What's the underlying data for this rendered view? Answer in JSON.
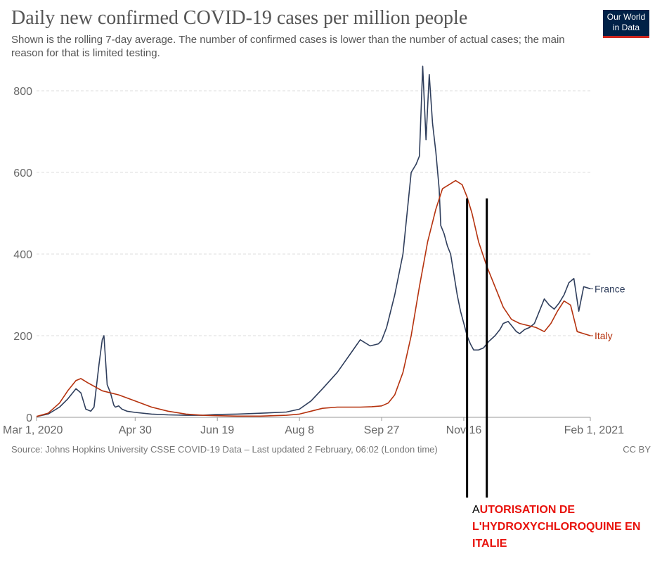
{
  "header": {
    "title": "Daily new confirmed COVID-19 cases per million people",
    "subtitle": "Shown is the rolling 7-day average. The number of confirmed cases is lower than the number of actual cases; the main reason for that is limited testing.",
    "logo_line1": "Our World",
    "logo_line2": "in Data"
  },
  "footer": {
    "source": "Source: Johns Hopkins University CSSE COVID-19 Data – Last updated 2 February, 06:02 (London time)",
    "license": "CC BY"
  },
  "annotation": {
    "first_letter": "A",
    "rest": "UTORISATION DE L'HYDROXYCHLOROQUINE EN ITALIE",
    "color": "#e8120c"
  },
  "colors": {
    "france": "#2f3e5c",
    "italy": "#b5320e",
    "grid": "#dddddd",
    "logo_bg": "#002147",
    "logo_bar": "#ce261e"
  },
  "chart_data": {
    "type": "line",
    "title": "Daily new confirmed COVID-19 cases per million people",
    "x_axis_type": "date",
    "xlim": [
      "2020-03-01",
      "2021-02-01"
    ],
    "ylim": [
      0,
      850
    ],
    "y_ticks": [
      0,
      200,
      400,
      600,
      800
    ],
    "x_ticks": [
      {
        "date": "2020-03-01",
        "label": "Mar 1, 2020"
      },
      {
        "date": "2020-04-30",
        "label": "Apr 30"
      },
      {
        "date": "2020-06-19",
        "label": "Jun 19"
      },
      {
        "date": "2020-08-08",
        "label": "Aug 8"
      },
      {
        "date": "2020-09-27",
        "label": "Sep 27"
      },
      {
        "date": "2020-11-16",
        "label": "Nov 16"
      },
      {
        "date": "2021-02-01",
        "label": "Feb 1, 2021"
      }
    ],
    "grid": true,
    "legend": "inline-right",
    "series": [
      {
        "name": "France",
        "x": [
          "2020-03-01",
          "2020-03-08",
          "2020-03-15",
          "2020-03-20",
          "2020-03-25",
          "2020-03-28",
          "2020-03-31",
          "2020-04-03",
          "2020-04-05",
          "2020-04-08",
          "2020-04-10",
          "2020-04-11",
          "2020-04-13",
          "2020-04-15",
          "2020-04-17",
          "2020-04-18",
          "2020-04-20",
          "2020-04-22",
          "2020-04-25",
          "2020-04-30",
          "2020-05-10",
          "2020-05-20",
          "2020-05-31",
          "2020-06-10",
          "2020-06-19",
          "2020-07-01",
          "2020-07-15",
          "2020-07-31",
          "2020-08-08",
          "2020-08-15",
          "2020-08-22",
          "2020-08-31",
          "2020-09-07",
          "2020-09-14",
          "2020-09-20",
          "2020-09-25",
          "2020-09-27",
          "2020-09-30",
          "2020-10-05",
          "2020-10-10",
          "2020-10-15",
          "2020-10-18",
          "2020-10-20",
          "2020-10-22",
          "2020-10-24",
          "2020-10-26",
          "2020-10-28",
          "2020-10-30",
          "2020-11-01",
          "2020-11-02",
          "2020-11-04",
          "2020-11-06",
          "2020-11-08",
          "2020-11-10",
          "2020-11-12",
          "2020-11-14",
          "2020-11-16",
          "2020-11-18",
          "2020-11-20",
          "2020-11-22",
          "2020-11-25",
          "2020-11-28",
          "2020-12-01",
          "2020-12-05",
          "2020-12-08",
          "2020-12-10",
          "2020-12-13",
          "2020-12-15",
          "2020-12-18",
          "2020-12-20",
          "2020-12-23",
          "2020-12-26",
          "2020-12-29",
          "2021-01-01",
          "2021-01-04",
          "2021-01-07",
          "2021-01-10",
          "2021-01-13",
          "2021-01-16",
          "2021-01-19",
          "2021-01-22",
          "2021-01-25",
          "2021-01-28",
          "2021-02-01"
        ],
        "y": [
          2,
          8,
          25,
          45,
          70,
          60,
          20,
          15,
          25,
          130,
          190,
          200,
          80,
          60,
          30,
          25,
          28,
          20,
          15,
          12,
          8,
          6,
          5,
          5,
          7,
          8,
          10,
          13,
          20,
          40,
          70,
          110,
          150,
          190,
          175,
          180,
          188,
          220,
          300,
          400,
          600,
          620,
          640,
          860,
          680,
          840,
          720,
          650,
          560,
          470,
          450,
          420,
          400,
          350,
          300,
          260,
          230,
          200,
          180,
          165,
          165,
          170,
          185,
          200,
          215,
          230,
          235,
          225,
          210,
          205,
          215,
          220,
          230,
          260,
          290,
          275,
          265,
          280,
          300,
          330,
          340,
          260,
          320,
          315
        ],
        "color": "#2f3e5c"
      },
      {
        "name": "Italy",
        "x": [
          "2020-03-01",
          "2020-03-08",
          "2020-03-15",
          "2020-03-20",
          "2020-03-25",
          "2020-03-28",
          "2020-04-01",
          "2020-04-10",
          "2020-04-20",
          "2020-04-30",
          "2020-05-10",
          "2020-05-20",
          "2020-05-31",
          "2020-06-10",
          "2020-06-19",
          "2020-07-01",
          "2020-07-15",
          "2020-07-31",
          "2020-08-08",
          "2020-08-15",
          "2020-08-22",
          "2020-08-31",
          "2020-09-07",
          "2020-09-14",
          "2020-09-21",
          "2020-09-27",
          "2020-10-01",
          "2020-10-05",
          "2020-10-10",
          "2020-10-15",
          "2020-10-20",
          "2020-10-25",
          "2020-10-30",
          "2020-11-03",
          "2020-11-07",
          "2020-11-11",
          "2020-11-13",
          "2020-11-15",
          "2020-11-18",
          "2020-11-21",
          "2020-11-25",
          "2020-11-30",
          "2020-12-05",
          "2020-12-10",
          "2020-12-15",
          "2020-12-20",
          "2020-12-25",
          "2020-12-30",
          "2021-01-04",
          "2021-01-08",
          "2021-01-12",
          "2021-01-16",
          "2021-01-20",
          "2021-01-24",
          "2021-01-28",
          "2021-02-01"
        ],
        "y": [
          2,
          10,
          35,
          65,
          90,
          95,
          85,
          65,
          55,
          40,
          25,
          15,
          8,
          5,
          4,
          3,
          3,
          5,
          8,
          15,
          22,
          25,
          25,
          25,
          26,
          28,
          35,
          55,
          110,
          200,
          320,
          430,
          510,
          560,
          570,
          580,
          575,
          570,
          540,
          500,
          430,
          370,
          320,
          270,
          240,
          230,
          225,
          220,
          210,
          230,
          260,
          285,
          275,
          210,
          205,
          200
        ],
        "color": "#b5320e"
      }
    ],
    "vertical_markers": [
      {
        "date": "2020-11-18"
      },
      {
        "date": "2020-11-30"
      }
    ]
  }
}
